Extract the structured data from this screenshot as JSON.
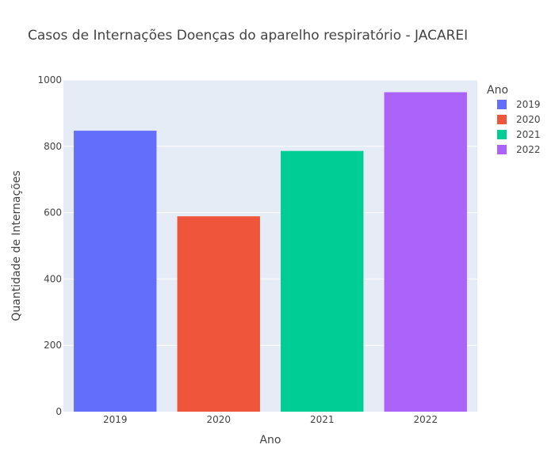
{
  "chart_data": {
    "type": "bar",
    "title": "Casos de Internações Doenças do aparelho respiratório - JACAREI",
    "xlabel": "Ano",
    "ylabel": "Quantidade de Internações",
    "categories": [
      "2019",
      "2020",
      "2021",
      "2022"
    ],
    "values": [
      847,
      589,
      786,
      963
    ],
    "colors": [
      "#636efa",
      "#ef553b",
      "#00cc96",
      "#ab63fa"
    ],
    "ylim": [
      0,
      1000
    ],
    "yticks": [
      0,
      200,
      400,
      600,
      800,
      1000
    ],
    "grid": true,
    "legend": {
      "title": "Ano",
      "placement": "right",
      "entries": [
        "2019",
        "2020",
        "2021",
        "2022"
      ]
    }
  }
}
